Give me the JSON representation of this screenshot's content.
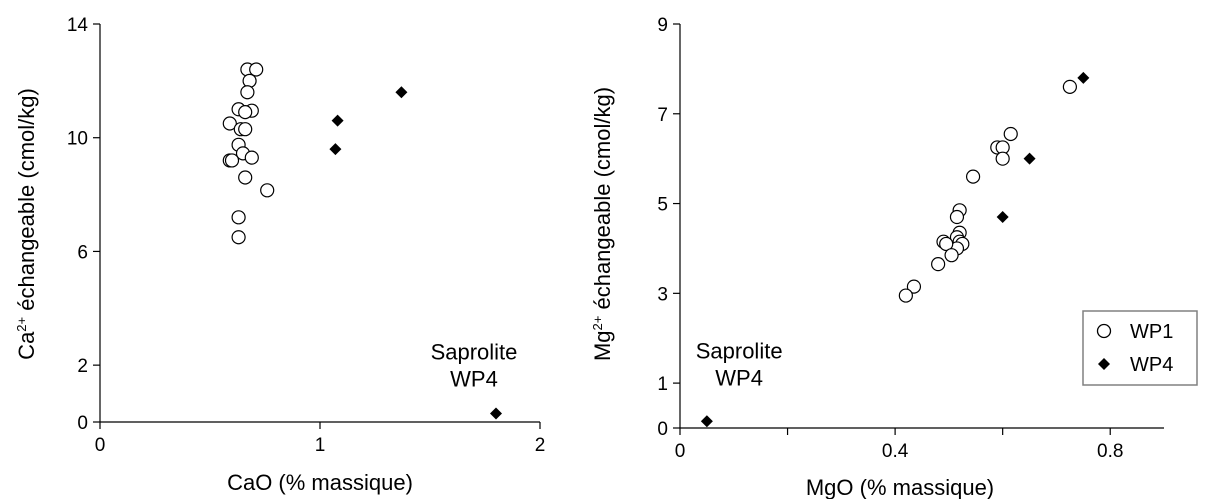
{
  "chart_data": [
    {
      "type": "scatter",
      "id": "ca",
      "xlabel": "CaO (% massique)",
      "ylabel_main": "Ca",
      "ylabel_sup": "2+",
      "ylabel_rest": " échangeable (cmol/kg)",
      "xlim": [
        0,
        2
      ],
      "ylim": [
        0,
        14
      ],
      "xticks": [
        0,
        1,
        2
      ],
      "xtick_labels": [
        "0",
        "1",
        "2"
      ],
      "yticks": [
        0,
        2,
        6,
        10,
        14
      ],
      "ytick_labels": [
        "0",
        "2",
        "6",
        "10",
        "14"
      ],
      "annotation": {
        "lines": [
          "Saprolite",
          "WP4"
        ],
        "x": 1.7,
        "y": 2.2
      },
      "series": [
        {
          "key": "WP1",
          "marker": "circle-open",
          "points": [
            [
              0.67,
              12.4
            ],
            [
              0.71,
              12.4
            ],
            [
              0.68,
              12.0
            ],
            [
              0.67,
              11.6
            ],
            [
              0.69,
              10.95
            ],
            [
              0.63,
              11.0
            ],
            [
              0.66,
              10.9
            ],
            [
              0.59,
              10.5
            ],
            [
              0.64,
              10.3
            ],
            [
              0.66,
              10.3
            ],
            [
              0.63,
              9.75
            ],
            [
              0.65,
              9.45
            ],
            [
              0.69,
              9.3
            ],
            [
              0.59,
              9.2
            ],
            [
              0.6,
              9.2
            ],
            [
              0.66,
              8.6
            ],
            [
              0.76,
              8.15
            ],
            [
              0.63,
              7.2
            ],
            [
              0.63,
              6.5
            ]
          ]
        },
        {
          "key": "WP4",
          "marker": "diamond-filled",
          "points": [
            [
              1.37,
              11.6
            ],
            [
              1.08,
              10.6
            ],
            [
              1.07,
              9.6
            ],
            [
              1.8,
              0.3
            ]
          ]
        }
      ]
    },
    {
      "type": "scatter",
      "id": "mg",
      "xlabel": "MgO (% massique)",
      "ylabel_main": "Mg",
      "ylabel_sup": "2+",
      "ylabel_rest": " échangeable (cmol/kg)",
      "xlim": [
        0,
        0.9
      ],
      "ylim": [
        0,
        9
      ],
      "xticks": [
        0,
        0.4,
        0.8
      ],
      "xtick_labels": [
        "0",
        "0.4",
        "0.8"
      ],
      "yticks": [
        0,
        1,
        3,
        5,
        7,
        9
      ],
      "ytick_labels": [
        "0",
        "1",
        "3",
        "5",
        "7",
        "9"
      ],
      "minor_xticks": [
        0.2,
        0.6
      ],
      "annotation": {
        "lines": [
          "Saprolite",
          "WP4"
        ],
        "x": 0.11,
        "y": 1.55
      },
      "legend": {
        "position": "right-bottom",
        "entries": [
          {
            "label": "WP1",
            "marker": "circle-open"
          },
          {
            "label": "WP4",
            "marker": "diamond-filled"
          }
        ]
      },
      "series": [
        {
          "key": "WP1",
          "marker": "circle-open",
          "points": [
            [
              0.725,
              7.6
            ],
            [
              0.615,
              6.55
            ],
            [
              0.59,
              6.25
            ],
            [
              0.6,
              6.25
            ],
            [
              0.6,
              6.0
            ],
            [
              0.545,
              5.6
            ],
            [
              0.52,
              4.85
            ],
            [
              0.515,
              4.7
            ],
            [
              0.52,
              4.35
            ],
            [
              0.515,
              4.25
            ],
            [
              0.52,
              4.15
            ],
            [
              0.525,
              4.1
            ],
            [
              0.515,
              4.0
            ],
            [
              0.49,
              4.15
            ],
            [
              0.495,
              4.1
            ],
            [
              0.505,
              3.85
            ],
            [
              0.48,
              3.65
            ],
            [
              0.435,
              3.15
            ],
            [
              0.42,
              2.95
            ]
          ]
        },
        {
          "key": "WP4",
          "marker": "diamond-filled",
          "points": [
            [
              0.75,
              7.8
            ],
            [
              0.65,
              6.0
            ],
            [
              0.6,
              4.7
            ],
            [
              0.05,
              0.15
            ]
          ]
        }
      ]
    }
  ]
}
